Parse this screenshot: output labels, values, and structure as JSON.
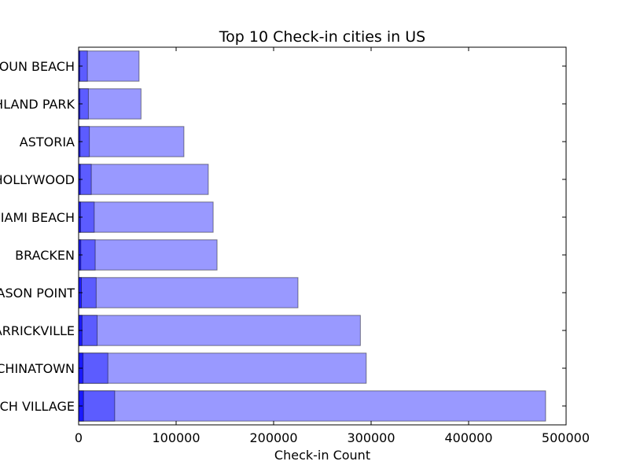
{
  "chart_data": {
    "type": "bar",
    "orientation": "horizontal",
    "title": "Top 10 Check-in cities in US",
    "xlabel": "Check-in Count",
    "ylabel": "",
    "xlim": [
      0,
      500000
    ],
    "xticks": [
      "0",
      "100000",
      "200000",
      "300000",
      "400000",
      "500000"
    ],
    "categories": [
      "CALHOUN BEACH",
      "HIGHLAND PARK",
      "ASTORIA",
      "HOLLYWOOD",
      "MIAMI BEACH",
      "BRACKEN",
      "MASON POINT",
      "MARRICKVILLE",
      "CHINATOWN",
      "GREENWICH VILLAGE"
    ],
    "series": [
      {
        "color": "#9999ff",
        "values": [
          62000,
          64000,
          108000,
          133000,
          138000,
          142000,
          225000,
          289000,
          295000,
          479000
        ]
      },
      {
        "color": "#5c5cff",
        "values": [
          9000,
          10000,
          11000,
          13000,
          16000,
          17000,
          18000,
          19000,
          30000,
          37000
        ]
      },
      {
        "color": "#1a1aff",
        "values": [
          1200,
          1300,
          1500,
          1800,
          2000,
          2200,
          2800,
          3500,
          4500,
          5000
        ]
      }
    ],
    "grid": false
  }
}
